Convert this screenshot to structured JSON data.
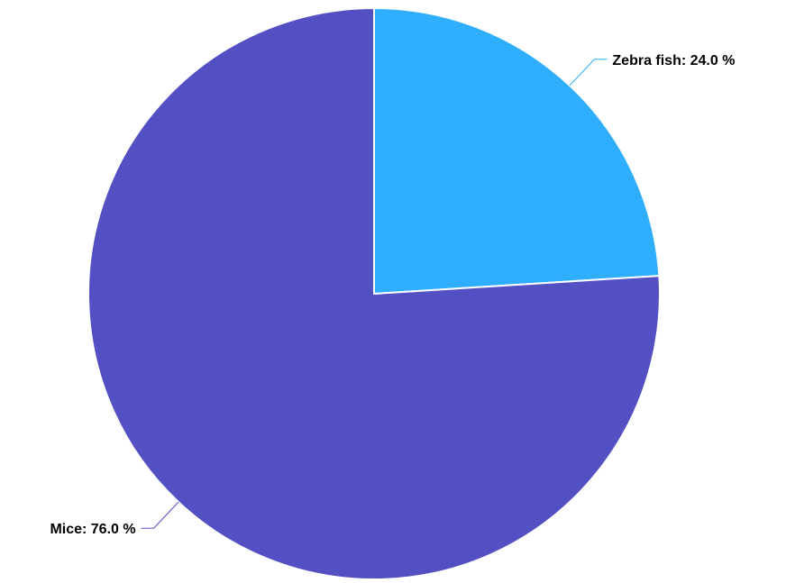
{
  "chart_data": {
    "type": "pie",
    "title": "",
    "slices": [
      {
        "label": "Zebra fish",
        "value": 24.0,
        "display": "Zebra fish: 24.0 %",
        "color": "#2eaefd"
      },
      {
        "label": "Mice",
        "value": 76.0,
        "display": "Mice: 76.0 %",
        "color": "#5350c4"
      }
    ],
    "legend": "none",
    "label_style": "outside-with-leader-lines"
  }
}
